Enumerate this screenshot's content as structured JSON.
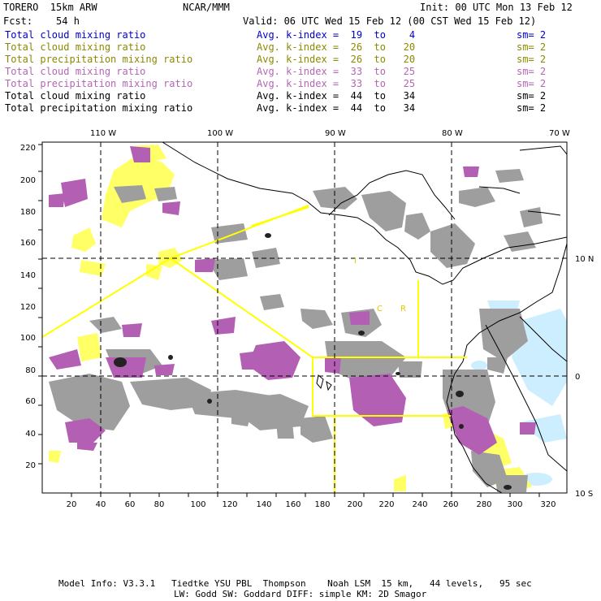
{
  "header": {
    "model": "TORERO  15km ARW",
    "center": "NCAR/MMM",
    "init": "Init: 00 UTC Mon 13 Feb 12",
    "fcst": "Fcst:    54 h",
    "valid": "Valid: 06 UTC Wed 15 Feb 12 (00 CST Wed 15 Feb 12)"
  },
  "legend": [
    {
      "field": "Total cloud mixing ratio",
      "kindex": "Avg. k-index =  19  to    4",
      "sm": "sm= 2",
      "color": "#0000cc"
    },
    {
      "field": "Total cloud mixing ratio",
      "kindex": "Avg. k-index =  26  to   20",
      "sm": "sm= 2",
      "color": "#8a8a00"
    },
    {
      "field": "Total precipitation mixing ratio",
      "kindex": "Avg. k-index =  26  to   20",
      "sm": "sm= 2",
      "color": "#8a8a00"
    },
    {
      "field": "Total cloud mixing ratio",
      "kindex": "Avg. k-index =  33  to   25",
      "sm": "sm= 2",
      "color": "#b366b3"
    },
    {
      "field": "Total precipitation mixing ratio",
      "kindex": "Avg. k-index =  33  to   25",
      "sm": "sm= 2",
      "color": "#b366b3"
    },
    {
      "field": "Total cloud mixing ratio",
      "kindex": "Avg. k-index =  44  to   34",
      "sm": "sm= 2",
      "color": "#000000"
    },
    {
      "field": "Total precipitation mixing ratio",
      "kindex": "Avg. k-index =  44  to   34",
      "sm": "sm= 2",
      "color": "#000000"
    }
  ],
  "map": {
    "top_lon_labels": [
      "110 W",
      "100 W",
      "90 W",
      "80 W",
      "70 W"
    ],
    "right_lat_labels": [
      "10 N",
      "0",
      "10 S"
    ],
    "x_ticks": [
      "20",
      "40",
      "60",
      "80",
      "100",
      "120",
      "140",
      "160",
      "180",
      "200",
      "220",
      "240",
      "260",
      "280",
      "300",
      "320"
    ],
    "y_ticks": [
      "220",
      "200",
      "180",
      "160",
      "140",
      "120",
      "100",
      "80",
      "60",
      "40",
      "20"
    ],
    "region_letters": [
      "I",
      "C",
      "R"
    ],
    "colors": {
      "gray_cloud": "#9e9e9e",
      "purple_precip": "#b35fb3",
      "yellow_cloud": "#ffff66",
      "lightblue_cloud": "#cceeff",
      "domain_box": "#ffff00"
    }
  },
  "footer": {
    "line1": "Model Info: V3.3.1   Tiedtke YSU PBL  Thompson    Noah LSM  15 km,   44 levels,   95 sec",
    "line2": "LW: Godd SW: Goddard DIFF: simple KM: 2D Smagor"
  }
}
